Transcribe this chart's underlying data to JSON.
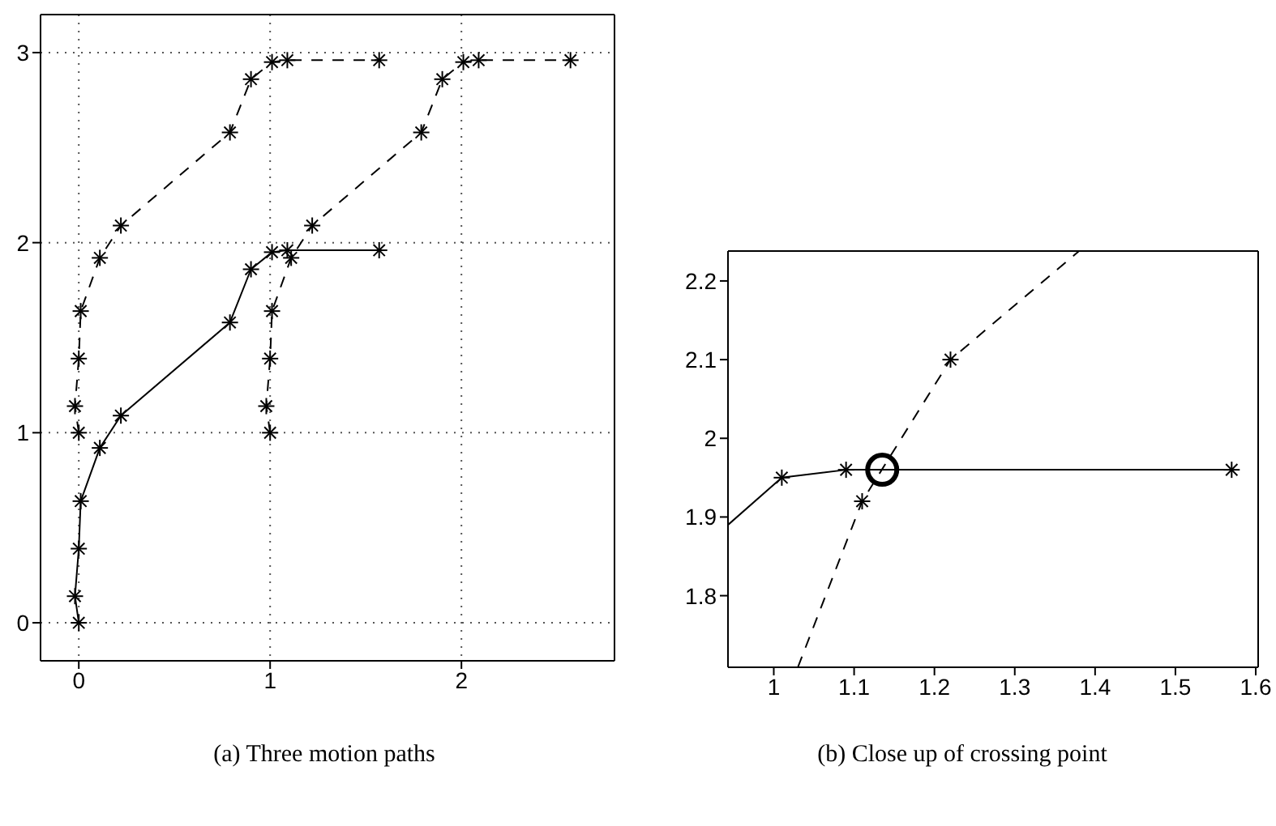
{
  "chart_data": [
    {
      "type": "line",
      "annotations": [
        "(a) Three motion paths"
      ],
      "xlim": [
        -0.2,
        2.8
      ],
      "ylim": [
        -0.2,
        3.2
      ],
      "xticks": [
        0,
        1,
        2
      ],
      "yticks": [
        0,
        1,
        2,
        3
      ],
      "grid": true,
      "marker": "cross",
      "series": [
        {
          "color": "#000000",
          "line_style": "solid",
          "x": [
            0,
            -0.02,
            0,
            0.01,
            0.11,
            0.22,
            0.79,
            0.9,
            1.01,
            1.09,
            1.57
          ],
          "values": [
            0,
            0.14,
            0.39,
            0.64,
            0.92,
            1.09,
            1.58,
            1.86,
            1.95,
            1.96,
            1.96
          ]
        },
        {
          "color": "#000000",
          "line_style": "dashed",
          "x": [
            0,
            -0.02,
            0,
            0.01,
            0.11,
            0.22,
            0.79,
            0.9,
            1.01,
            1.09,
            1.57
          ],
          "values": [
            1,
            1.14,
            1.39,
            1.64,
            1.92,
            2.09,
            2.58,
            2.86,
            2.95,
            2.96,
            2.96
          ]
        },
        {
          "color": "#000000",
          "line_style": "dashed",
          "x": [
            1,
            0.98,
            1,
            1.01,
            1.11,
            1.22,
            1.79,
            1.9,
            2.01,
            2.09,
            2.57
          ],
          "values": [
            1,
            1.14,
            1.39,
            1.64,
            1.92,
            2.09,
            2.58,
            2.86,
            2.95,
            2.96,
            2.96
          ]
        }
      ]
    },
    {
      "type": "line",
      "annotations": [
        "(b) Close up of crossing point"
      ],
      "xlim": [
        0.943,
        1.603
      ],
      "ylim": [
        1.709,
        2.238
      ],
      "xticks": [
        1,
        1.1,
        1.2,
        1.3,
        1.4,
        1.5,
        1.6
      ],
      "yticks": [
        1.8,
        1.9,
        2,
        2.1,
        2.2
      ],
      "marker": "cross",
      "series": [
        {
          "color": "#000000",
          "line_style": "solid",
          "x": [
            0.943,
            1.01,
            1.09,
            1.57
          ],
          "values": [
            1.89,
            1.95,
            1.96,
            1.96
          ]
        },
        {
          "color": "#000000",
          "line_style": "dashed",
          "x": [
            1.03,
            1.11,
            1.22,
            1.38
          ],
          "values": [
            1.709,
            1.92,
            2.1,
            2.238
          ]
        },
        {
          "type": "scatter",
          "marker": "circle",
          "color": "#000000",
          "x": [
            1.135
          ],
          "values": [
            1.96
          ]
        }
      ]
    }
  ]
}
